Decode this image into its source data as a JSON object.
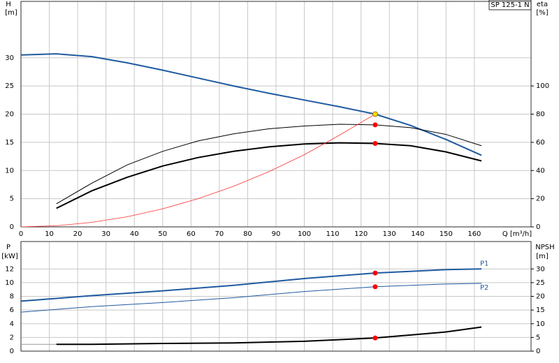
{
  "chart_data": [
    {
      "type": "line",
      "annotation": "SP 125-1 N",
      "ylabel": "H",
      "yunit": "[m]",
      "y2label": "eta",
      "y2unit": "[%]",
      "xlabel": "Q [m³/h]",
      "xlim": [
        0,
        180
      ],
      "xticks": [
        0,
        10,
        20,
        30,
        40,
        50,
        60,
        70,
        80,
        90,
        100,
        110,
        120,
        130,
        140,
        150,
        160
      ],
      "ylim": [
        0,
        40
      ],
      "yticks": [
        0,
        5,
        10,
        15,
        20,
        25,
        30
      ],
      "y2lim": [
        0,
        160
      ],
      "y2ticks": [
        0,
        20,
        40,
        60,
        80,
        100
      ],
      "grid": true,
      "series": [
        {
          "color": "#1f5aa0",
          "width": 2,
          "x": [
            0,
            12.5,
            25,
            37.5,
            50,
            62.5,
            75,
            87.5,
            100,
            112.5,
            125,
            137.5,
            150,
            162.5
          ],
          "values": [
            30.5,
            30.7,
            30.2,
            29.1,
            27.8,
            26.4,
            25.0,
            23.7,
            22.5,
            21.3,
            20.0,
            18.0,
            15.5,
            12.7
          ]
        },
        {
          "color": "#000000",
          "width": 1,
          "axis": "y2",
          "x": [
            12.5,
            25,
            37.5,
            50,
            62.5,
            75,
            87.5,
            100,
            112.5,
            125,
            137.5,
            150,
            162.5
          ],
          "values": [
            16.4,
            31,
            44,
            53.6,
            61,
            66,
            69.6,
            71.6,
            72.8,
            72.4,
            70.4,
            65.6,
            57.6
          ]
        },
        {
          "color": "#000000",
          "width": 2,
          "axis": "y2",
          "x": [
            12.5,
            25,
            37.5,
            50,
            62.5,
            75,
            87.5,
            100,
            112.5,
            125,
            137.5,
            150,
            162.5
          ],
          "values": [
            13.2,
            25.6,
            35.2,
            43.2,
            49.2,
            53.6,
            56.8,
            58.8,
            59.6,
            59.2,
            57.6,
            53.2,
            46.8
          ]
        },
        {
          "color": "#ff3030",
          "width": 0.8,
          "x": [
            0,
            12.5,
            25,
            37.5,
            50,
            62.5,
            75,
            87.5,
            100,
            112.5,
            125
          ],
          "values": [
            0,
            0.2,
            0.8,
            1.8,
            3.2,
            5.0,
            7.2,
            9.8,
            12.8,
            16.3,
            20
          ]
        }
      ],
      "markers": [
        {
          "x": 125,
          "value": 20,
          "color": "#ffd700"
        },
        {
          "x": 125,
          "value": 72.4,
          "color": "#ff0000",
          "axis": "y2"
        },
        {
          "x": 125,
          "value": 59.2,
          "color": "#ff0000",
          "axis": "y2"
        }
      ]
    },
    {
      "type": "line",
      "ylabel": "P",
      "yunit": "[kW]",
      "y2label": "NPSH",
      "y2unit": "[m]",
      "xlim": [
        0,
        180
      ],
      "ylim": [
        0,
        16
      ],
      "yticks": [
        0,
        2,
        4,
        6,
        8,
        10,
        12
      ],
      "y2lim": [
        0,
        40
      ],
      "y2ticks": [
        0,
        5,
        10,
        15,
        20,
        25,
        30
      ],
      "grid": true,
      "series": [
        {
          "name": "P1",
          "color": "#1f5aa0",
          "width": 2,
          "x": [
            0,
            12.5,
            25,
            50,
            75,
            100,
            125,
            150,
            162.5
          ],
          "values": [
            7.3,
            7.7,
            8.1,
            8.8,
            9.6,
            10.6,
            11.4,
            11.9,
            12.0
          ]
        },
        {
          "name": "P2",
          "color": "#1f5aa0",
          "width": 1,
          "x": [
            0,
            25,
            50,
            75,
            100,
            125,
            150,
            162.5
          ],
          "values": [
            5.7,
            6.5,
            7.1,
            7.8,
            8.7,
            9.4,
            9.8,
            9.9
          ]
        },
        {
          "color": "#999999",
          "width": 1,
          "axis": "y2",
          "x": [
            0,
            12.5
          ],
          "values": [
            2.5,
            2.5
          ]
        },
        {
          "color": "#000000",
          "width": 2,
          "axis": "y2",
          "x": [
            12.5,
            25,
            50,
            75,
            100,
            125,
            137.5,
            150,
            162.5
          ],
          "values": [
            2.5,
            2.5,
            2.8,
            3.0,
            3.6,
            4.8,
            5.9,
            7.0,
            8.8
          ]
        }
      ],
      "markers": [
        {
          "x": 125,
          "value": 11.4,
          "color": "#ff0000"
        },
        {
          "x": 125,
          "value": 9.4,
          "color": "#ff0000"
        },
        {
          "x": 125,
          "value": 4.8,
          "color": "#ff0000",
          "axis": "y2"
        }
      ]
    }
  ]
}
